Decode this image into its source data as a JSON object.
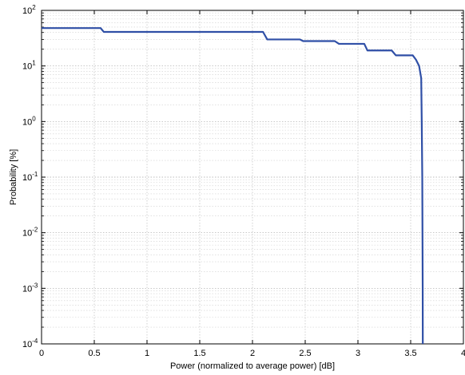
{
  "chart_data": {
    "type": "line",
    "title": "",
    "xlabel": "Power (normalized to average power) [dB]",
    "ylabel": "Probability [%]",
    "xscale": "linear",
    "yscale": "log",
    "xlim": [
      0,
      4
    ],
    "ylim": [
      0.0001,
      100
    ],
    "grid": true,
    "legend": "none",
    "x_ticks": [
      "0",
      "0.5",
      "1",
      "1.5",
      "2",
      "2.5",
      "3",
      "3.5",
      "4"
    ],
    "y_ticks": [
      {
        "base": "10",
        "exp": "2"
      },
      {
        "base": "10",
        "exp": "1"
      },
      {
        "base": "10",
        "exp": "0"
      },
      {
        "base": "10",
        "exp": "-1"
      },
      {
        "base": "10",
        "exp": "-2"
      },
      {
        "base": "10",
        "exp": "-3"
      },
      {
        "base": "10",
        "exp": "-4"
      }
    ],
    "series": [
      {
        "color": "#2f4fa6",
        "points": [
          [
            0,
            48
          ],
          [
            0.56,
            48
          ],
          [
            0.59,
            41
          ],
          [
            2.1,
            41
          ],
          [
            2.14,
            30
          ],
          [
            2.45,
            30
          ],
          [
            2.48,
            28
          ],
          [
            2.78,
            28
          ],
          [
            2.82,
            25
          ],
          [
            3.06,
            25
          ],
          [
            3.09,
            19
          ],
          [
            3.32,
            19
          ],
          [
            3.36,
            15.5
          ],
          [
            3.52,
            15.5
          ],
          [
            3.55,
            13
          ],
          [
            3.58,
            10
          ],
          [
            3.6,
            6
          ],
          [
            3.605,
            1
          ],
          [
            3.61,
            0.1
          ],
          [
            3.612,
            0.01
          ],
          [
            3.614,
            0.001
          ],
          [
            3.615,
            0.0001
          ]
        ]
      }
    ]
  }
}
